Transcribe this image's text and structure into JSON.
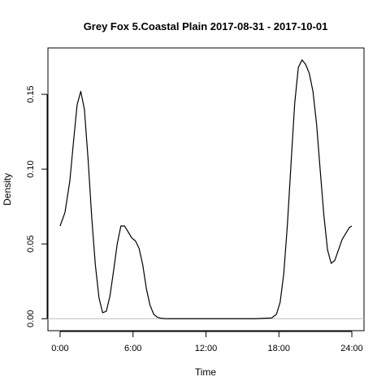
{
  "chart_data": {
    "type": "line",
    "title": "Grey Fox 5.Coastal Plain 2017-08-31 - 2017-10-01",
    "xlabel": "Time",
    "ylabel": "Density",
    "xlim": [
      -1.0,
      25.0
    ],
    "ylim": [
      -0.008,
      0.181
    ],
    "x_ticks": [
      {
        "value": 0,
        "label": "0:00"
      },
      {
        "value": 6,
        "label": "6:00"
      },
      {
        "value": 12,
        "label": "12:00"
      },
      {
        "value": 18,
        "label": "18:00"
      },
      {
        "value": 24,
        "label": "24:00"
      }
    ],
    "y_ticks": [
      {
        "value": 0.0,
        "label": "0.00"
      },
      {
        "value": 0.05,
        "label": "0.05"
      },
      {
        "value": 0.1,
        "label": "0.10"
      },
      {
        "value": 0.15,
        "label": "0.15"
      }
    ],
    "reference_line_y": 0,
    "grid": false,
    "legend": "none",
    "series": [
      {
        "x": [
          0,
          0.4,
          0.8,
          1.1,
          1.4,
          1.7,
          2.0,
          2.3,
          2.6,
          2.9,
          3.2,
          3.5,
          3.8,
          4.1,
          4.4,
          4.7,
          5.0,
          5.3,
          5.6,
          5.9,
          6.2,
          6.5,
          6.8,
          7.1,
          7.4,
          7.7,
          8.0,
          8.3,
          8.6,
          9.0,
          10,
          12,
          14,
          16,
          17.4,
          17.8,
          18.1,
          18.4,
          18.7,
          19.0,
          19.3,
          19.6,
          19.9,
          20.2,
          20.5,
          20.8,
          21.1,
          21.4,
          21.7,
          22.0,
          22.3,
          22.6,
          22.9,
          23.2,
          23.5,
          23.8,
          24.0
        ],
        "y": [
          0.062,
          0.071,
          0.092,
          0.118,
          0.143,
          0.152,
          0.14,
          0.107,
          0.068,
          0.036,
          0.014,
          0.004,
          0.005,
          0.015,
          0.032,
          0.05,
          0.062,
          0.062,
          0.058,
          0.054,
          0.052,
          0.047,
          0.036,
          0.02,
          0.009,
          0.003,
          0.001,
          0.0003,
          0.0001,
          0.0,
          0.0,
          0.0,
          0.0,
          0.0,
          0.0005,
          0.003,
          0.011,
          0.03,
          0.063,
          0.104,
          0.144,
          0.168,
          0.173,
          0.17,
          0.164,
          0.152,
          0.13,
          0.099,
          0.069,
          0.046,
          0.037,
          0.039,
          0.046,
          0.053,
          0.057,
          0.061,
          0.062
        ],
        "color": "#000000"
      }
    ]
  }
}
